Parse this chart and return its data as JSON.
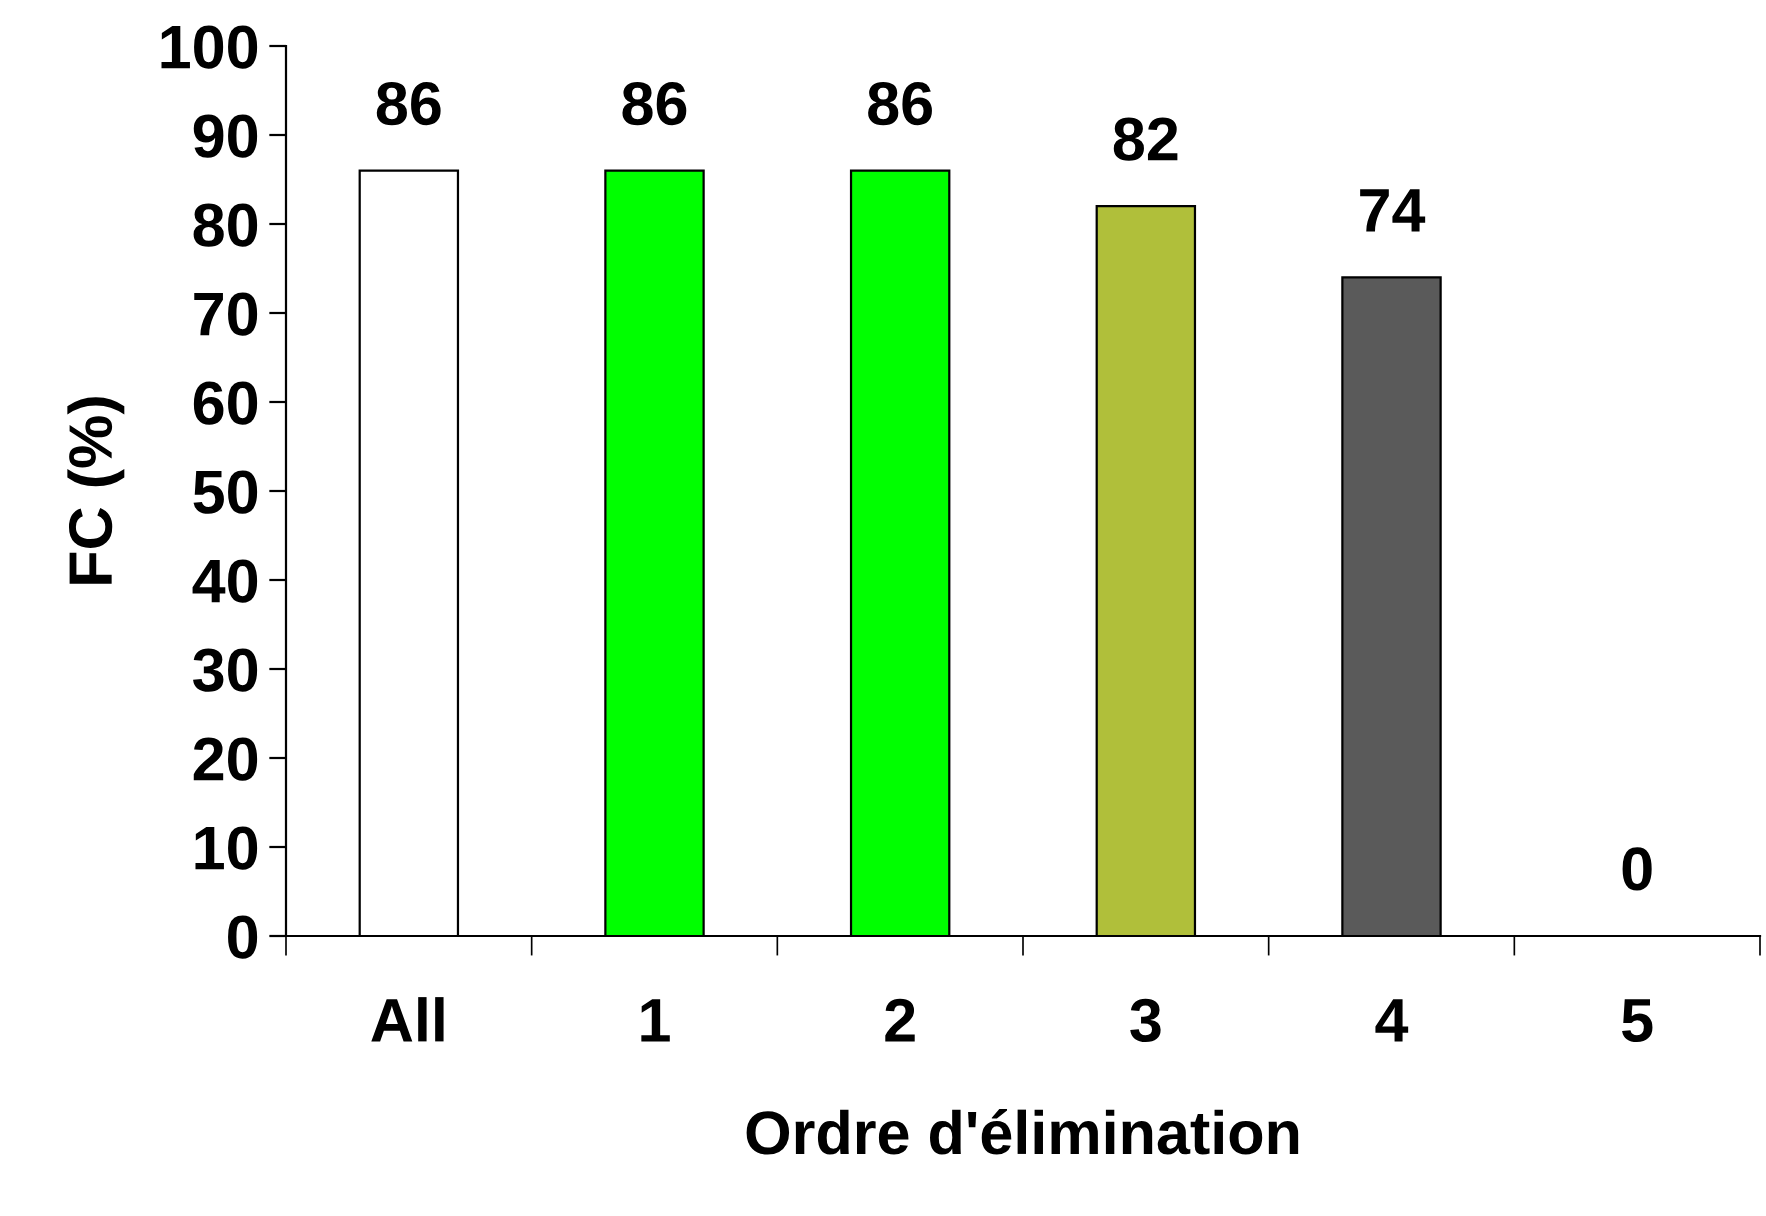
{
  "chart_data": {
    "type": "bar",
    "xlabel": "Ordre d'élimination",
    "ylabel": "FC (%)",
    "categories": [
      "All",
      "1",
      "2",
      "3",
      "4",
      "5"
    ],
    "values": [
      86,
      86,
      86,
      82,
      74,
      0
    ],
    "colors": [
      "#ffffff",
      "#00ff00",
      "#00ff00",
      "#b0bf3a",
      "#5a5a5a",
      "#000000"
    ],
    "ylim": [
      0,
      100
    ],
    "yticks": [
      0,
      10,
      20,
      30,
      40,
      50,
      60,
      70,
      80,
      90,
      100
    ],
    "data_labels": true,
    "grid": false,
    "legend": false
  }
}
